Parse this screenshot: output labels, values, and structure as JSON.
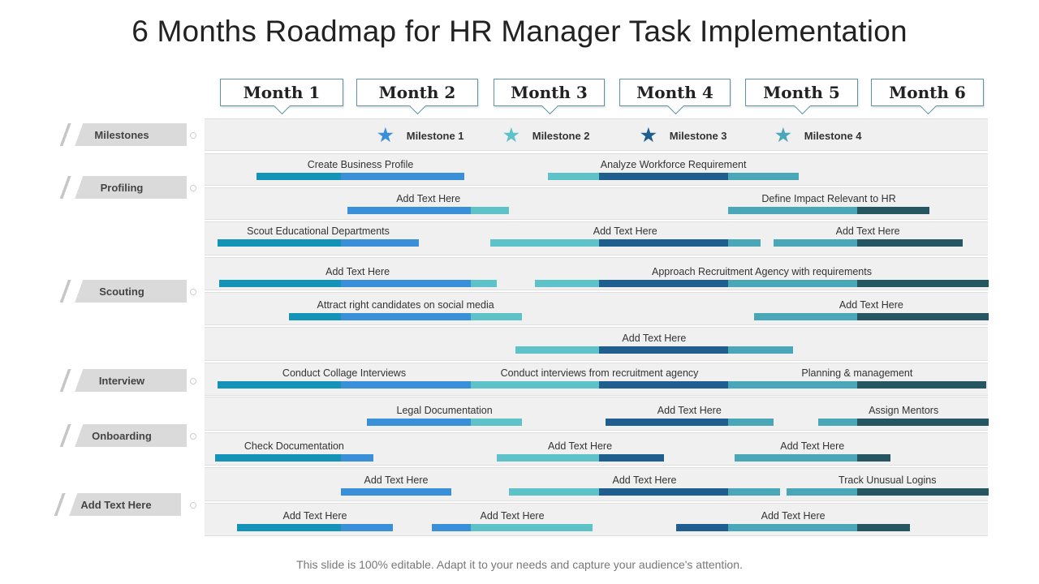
{
  "title": "6 Months Roadmap for HR Manager Task Implementation",
  "months": [
    "Month 1",
    "Month 2",
    "Month 3",
    "Month 4",
    "Month 5",
    "Month 6"
  ],
  "colors": {
    "m1": "#1493b8",
    "m2": "#3a8fd9",
    "m3": "#5ec2c9",
    "m4": "#1f5f8f",
    "m5": "#4aa7b8",
    "m6": "#275663"
  },
  "categories": [
    "Milestones",
    "Profiling",
    "Scouting",
    "Interview",
    "Onboarding",
    "Add Text Here"
  ],
  "milestones": [
    {
      "label": "Milestone 1",
      "icon": "star-icon",
      "color": "#3a8fd9"
    },
    {
      "label": "Milestone 2",
      "icon": "star-icon",
      "color": "#5ec2c9"
    },
    {
      "label": "Milestone 3",
      "icon": "star-icon",
      "color": "#1f5f8f"
    },
    {
      "label": "Milestone 4",
      "icon": "star-icon",
      "color": "#4aa7b8"
    }
  ],
  "tasks": [
    {
      "row": 0,
      "label": "Create Business Profile",
      "start": 0.35,
      "end": 1.95
    },
    {
      "row": 0,
      "label": "Analyze Workforce Requirement",
      "start": 2.6,
      "end": 4.55
    },
    {
      "row": 1,
      "label": "Add Text Here",
      "start": 1.05,
      "end": 2.3
    },
    {
      "row": 1,
      "label": "Define Impact Relevant  to HR",
      "start": 4.0,
      "end": 5.55
    },
    {
      "row": 2,
      "label": "Scout Educational Departments",
      "start": 0.05,
      "end": 1.6
    },
    {
      "row": 2,
      "label": "Add Text Here",
      "start": 2.15,
      "end": 4.25
    },
    {
      "row": 2,
      "label": "Add Text Here",
      "start": 4.35,
      "end": 5.8
    },
    {
      "row": 3,
      "label": "Add Text Here",
      "start": 0.06,
      "end": 2.2
    },
    {
      "row": 3,
      "label": "Approach Recruitment Agency with requirements",
      "start": 2.5,
      "end": 6.0
    },
    {
      "row": 4,
      "label": "Attract right candidates on social media",
      "start": 0.6,
      "end": 2.4
    },
    {
      "row": 4,
      "label": "Add Text Here",
      "start": 4.2,
      "end": 6.0
    },
    {
      "row": 5,
      "label": "Add Text Here",
      "start": 2.35,
      "end": 4.5
    },
    {
      "row": 6,
      "label": "Conduct Collage Interviews",
      "start": 0.05,
      "end": 2.0
    },
    {
      "row": 6,
      "label": "Conduct interviews  from recruitment agency",
      "start": 2.0,
      "end": 4.0
    },
    {
      "row": 6,
      "label": "Planning & management",
      "start": 4.0,
      "end": 5.98
    },
    {
      "row": 7,
      "label": "Legal Documentation",
      "start": 1.2,
      "end": 2.4
    },
    {
      "row": 7,
      "label": "Add Text Here",
      "start": 3.05,
      "end": 4.35
    },
    {
      "row": 7,
      "label": "Assign Mentors",
      "start": 4.7,
      "end": 6.0
    },
    {
      "row": 8,
      "label": "Check Documentation",
      "start": 0.03,
      "end": 1.25
    },
    {
      "row": 8,
      "label": "Add Text Here",
      "start": 2.2,
      "end": 3.5
    },
    {
      "row": 8,
      "label": "Add Text Here",
      "start": 4.05,
      "end": 5.25
    },
    {
      "row": 9,
      "label": "Add Text Here",
      "start": 1.0,
      "end": 1.85
    },
    {
      "row": 9,
      "label": "Add Text Here",
      "start": 2.3,
      "end": 4.4
    },
    {
      "row": 9,
      "label": "Track Unusual Logins",
      "start": 4.45,
      "end": 6.0
    },
    {
      "row": 10,
      "label": "Add Text Here",
      "start": 0.2,
      "end": 1.4
    },
    {
      "row": 10,
      "label": "Add Text Here",
      "start": 1.7,
      "end": 2.95
    },
    {
      "row": 10,
      "label": "Add Text Here",
      "start": 3.6,
      "end": 5.4
    }
  ],
  "footer": "This slide is 100% editable. Adapt it to your needs and capture your audience's attention."
}
